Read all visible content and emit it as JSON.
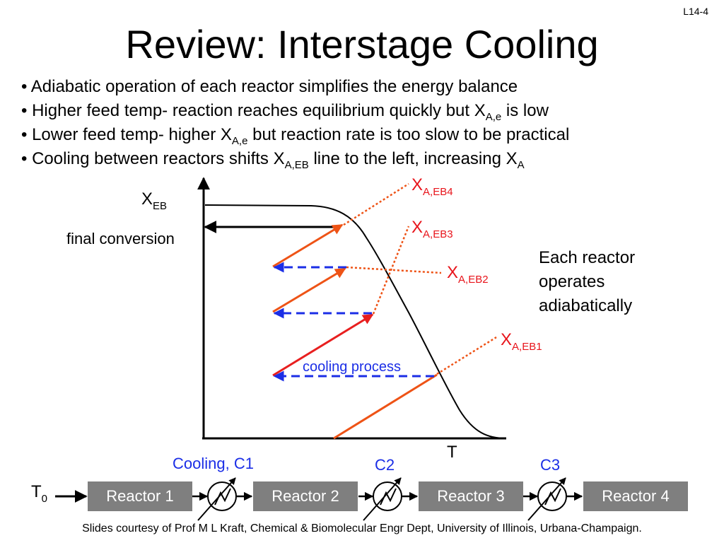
{
  "slide_number": "L14-4",
  "title": "Review: Interstage Cooling",
  "bullets": [
    {
      "parts": [
        {
          "t": "Adiabatic operation of each reactor simplifies the energy balance"
        }
      ]
    },
    {
      "parts": [
        {
          "t": "Higher feed temp- reaction reaches equilibrium quickly but X"
        },
        {
          "t": "A,e",
          "sub": true
        },
        {
          "t": " is low"
        }
      ]
    },
    {
      "parts": [
        {
          "t": "Lower feed temp- higher X"
        },
        {
          "t": "A,e",
          "sub": true
        },
        {
          "t": " but reaction rate is too slow to be practical"
        }
      ]
    },
    {
      "parts": [
        {
          "t": "Cooling between reactors shifts X"
        },
        {
          "t": "A,EB",
          "sub": true
        },
        {
          "t": " line to the left, increasing X"
        },
        {
          "t": "A",
          "sub": true
        }
      ]
    }
  ],
  "bullet_marker": "•",
  "plot": {
    "y_axis_label": {
      "main": "X",
      "sub": "EB"
    },
    "x_axis_label": "T",
    "final_conversion_label": "final conversion",
    "operating_lines": [
      {
        "main": "X",
        "sub": "A,EB1"
      },
      {
        "main": "X",
        "sub": "A,EB2"
      },
      {
        "main": "X",
        "sub": "A,EB3"
      },
      {
        "main": "X",
        "sub": "A,EB4"
      }
    ],
    "cooling_process_label": "cooling process",
    "note": "Each reactor operates adiabatically",
    "colors": {
      "operating_line": "#ee5316",
      "dotted_extension": "#ee5316",
      "cooling_line": "#1b2ee6",
      "label_red": "#e8141b",
      "axis": "#000000"
    }
  },
  "flow": {
    "feed_label": {
      "main": "T",
      "sub": "0"
    },
    "reactors": [
      "Reactor 1",
      "Reactor 2",
      "Reactor 3",
      "Reactor 4"
    ],
    "coolers": [
      "Cooling, C1",
      "C2",
      "C3"
    ],
    "box_color": "#7f7f7f"
  },
  "credit": "Slides courtesy of Prof M L Kraft, Chemical & Biomolecular Engr Dept, University of Illinois, Urbana-Champaign."
}
